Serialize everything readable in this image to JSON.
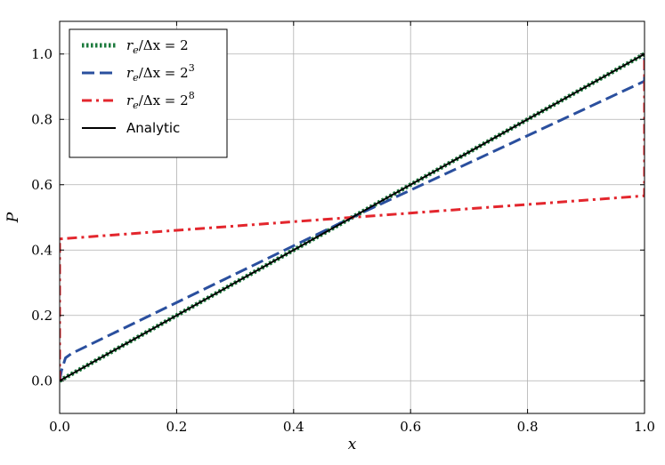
{
  "chart_data": {
    "type": "line",
    "xlabel": "x",
    "ylabel": "P",
    "xlim": [
      0.0,
      1.0
    ],
    "ylim": [
      -0.1,
      1.1
    ],
    "x_ticks": [
      0.0,
      0.2,
      0.4,
      0.6,
      0.8,
      1.0
    ],
    "x_tick_labels": [
      "0.0",
      "0.2",
      "0.4",
      "0.6",
      "0.8",
      "1.0"
    ],
    "y_ticks": [
      0.0,
      0.2,
      0.4,
      0.6,
      0.8,
      1.0
    ],
    "y_tick_labels": [
      "0.0",
      "0.2",
      "0.4",
      "0.6",
      "0.8",
      "1.0"
    ],
    "grid": true,
    "legend_position": "top-left",
    "series": [
      {
        "name": "r_e/Δx = 2",
        "legend_parts": {
          "main": "r",
          "sub": "e",
          "rest": "/Δx = 2",
          "sup": ""
        },
        "color": "#1b7a3c",
        "style": "dotted",
        "x": [
          0.0,
          1.0
        ],
        "y": [
          0.0,
          1.0
        ]
      },
      {
        "name": "r_e/Δx = 2^3",
        "legend_parts": {
          "main": "r",
          "sub": "e",
          "rest": "/Δx = 2",
          "sup": "3"
        },
        "color": "#2a4f9e",
        "style": "dashed",
        "x": [
          0.0,
          0.003,
          0.01,
          0.02,
          0.5,
          1.0,
          1.0
        ],
        "y": [
          0.0,
          0.03,
          0.07,
          0.083,
          0.5,
          0.917,
          1.0
        ]
      },
      {
        "name": "r_e/Δx = 2^8",
        "legend_parts": {
          "main": "r",
          "sub": "e",
          "rest": "/Δx = 2",
          "sup": "8"
        },
        "color": "#e3262d",
        "style": "dashdot",
        "x": [
          0.0,
          0.0,
          0.5,
          1.0,
          1.0
        ],
        "y": [
          0.0,
          0.434,
          0.5,
          0.566,
          1.0
        ]
      },
      {
        "name": "Analytic",
        "legend_parts": {
          "main": "Analytic",
          "sub": "",
          "rest": "",
          "sup": ""
        },
        "color": "#000000",
        "style": "solid",
        "x": [
          0.0,
          1.0
        ],
        "y": [
          0.0,
          1.0
        ]
      }
    ]
  }
}
